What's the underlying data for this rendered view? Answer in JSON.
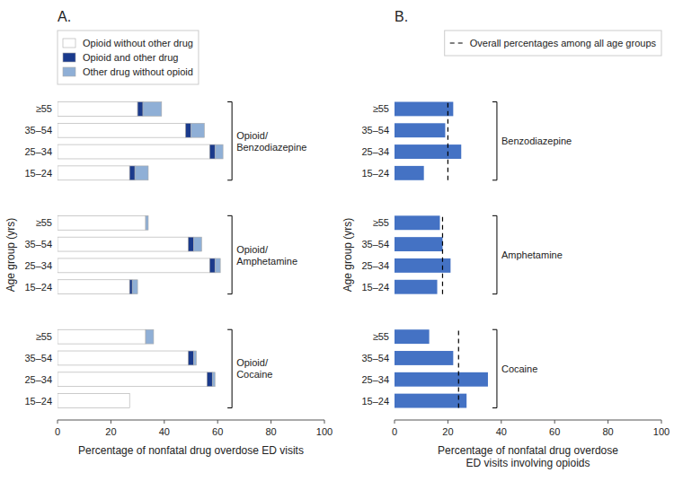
{
  "chart_data": [
    {
      "type": "bar",
      "orientation": "horizontal",
      "stacked": true,
      "title": "A.",
      "xlabel": "Percentage of nonfatal drug overdose ED visits",
      "ylabel": "Age group (yrs)",
      "categories": [
        "≥55",
        "35–54",
        "25–34",
        "15–24",
        "≥55",
        "35–54",
        "25–34",
        "15–24",
        "≥55",
        "35–54",
        "25–34",
        "15–24"
      ],
      "groups": [
        "Opioid/\nBenzodiazepine",
        "Opioid/\nAmphetamine",
        "Opioid/\nCocaine"
      ],
      "series": [
        {
          "name": "Opioid without other drug",
          "color": "#ffffff",
          "values": [
            30,
            48,
            57,
            27,
            33,
            49,
            57,
            27,
            33,
            49,
            56,
            27
          ]
        },
        {
          "name": "Opioid and other drug",
          "color": "#1a3a8c",
          "values": [
            2,
            2,
            2,
            2,
            0,
            2,
            2,
            1,
            0,
            2,
            2,
            0
          ]
        },
        {
          "name": "Other drug without opioid",
          "color": "#8fafd6",
          "values": [
            7,
            5,
            3,
            5,
            1,
            3,
            2,
            2,
            3,
            1,
            1,
            0
          ]
        }
      ],
      "xlim": [
        0,
        100
      ],
      "xticks": [
        0,
        20,
        40,
        60,
        80,
        100
      ],
      "grid": false,
      "legend": "upper left"
    },
    {
      "type": "bar",
      "orientation": "horizontal",
      "title": "B.",
      "xlabel": "Percentage of nonfatal drug overdose\nED visits involving opioids",
      "ylabel": "Age group (yrs)",
      "categories": [
        "≥55",
        "35–54",
        "25–34",
        "15–24",
        "≥55",
        "35–54",
        "25–34",
        "15–24",
        "≥55",
        "35–54",
        "25–34",
        "15–24"
      ],
      "groups": [
        "Benzodiazepine",
        "Amphetamine",
        "Cocaine"
      ],
      "values": [
        22,
        19,
        25,
        11,
        17,
        18,
        21,
        16,
        13,
        22,
        35,
        27
      ],
      "color": "#4472c4",
      "overall": {
        "name": "Overall percentages among all age groups",
        "values": [
          20,
          18,
          24
        ],
        "line_style": "dashed"
      },
      "xlim": [
        0,
        100
      ],
      "xticks": [
        0,
        20,
        40,
        60,
        80,
        100
      ],
      "grid": false,
      "legend": "upper right"
    }
  ]
}
